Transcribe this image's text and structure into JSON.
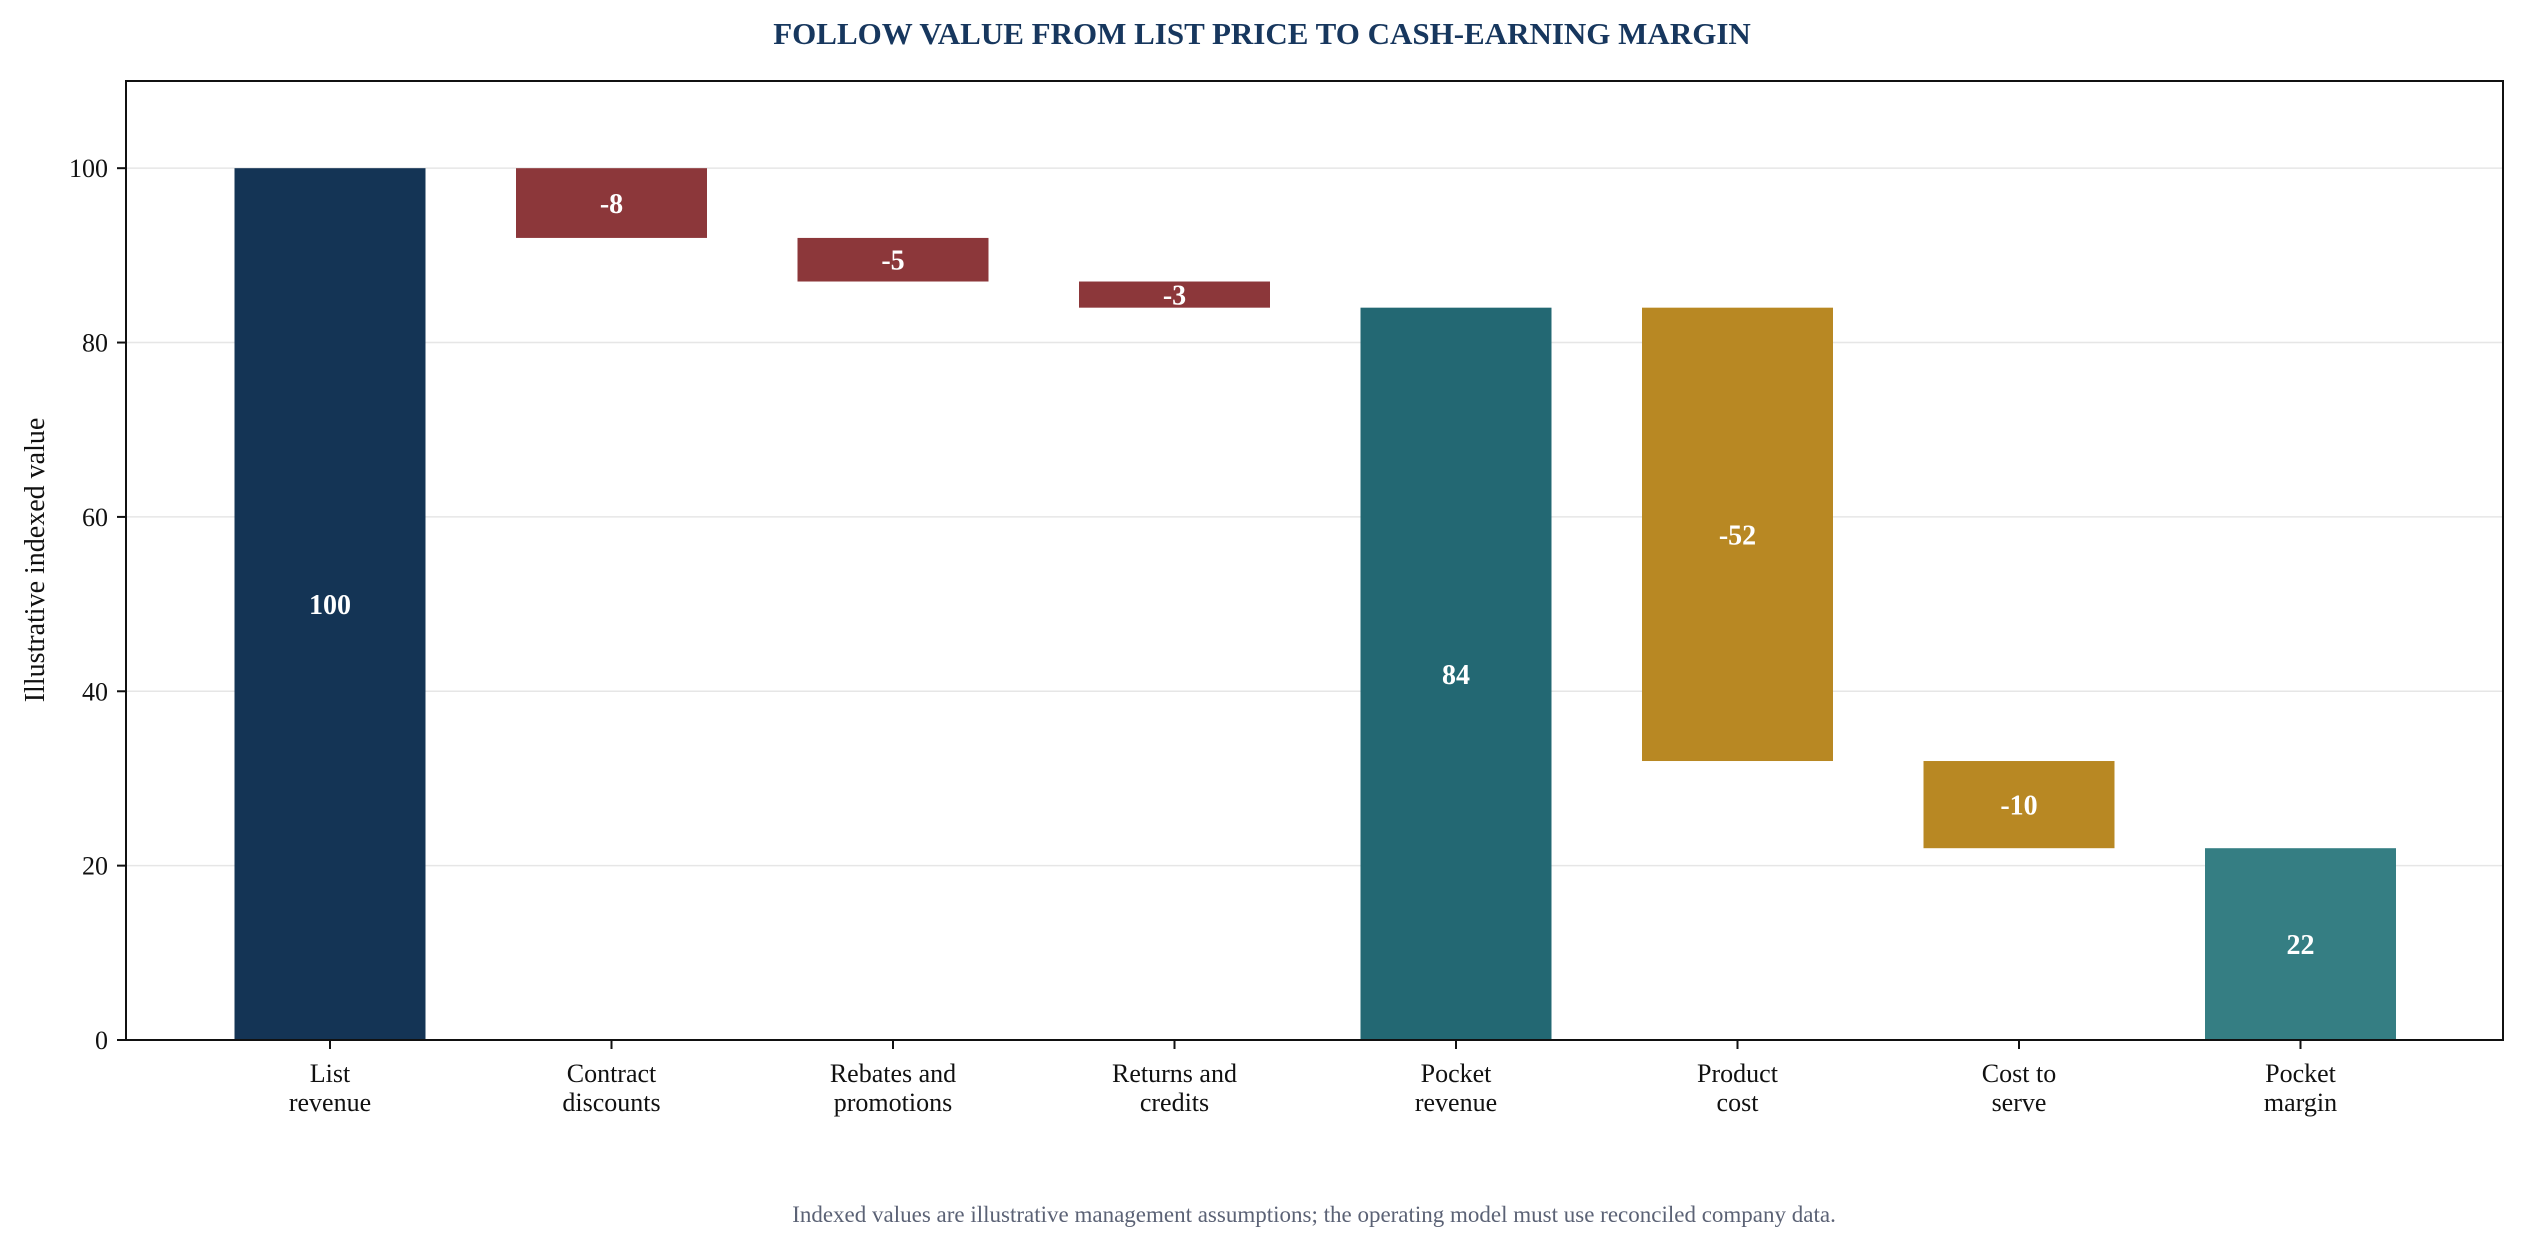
{
  "colors": {
    "title": "#17375e",
    "start": "#143455",
    "price_leak": "#8c373a",
    "subtotal": "#236873",
    "cost": "#b88823",
    "result": "#357e83",
    "grid": "#e6e6e6",
    "footnote": "#5b6275"
  },
  "chart_data": {
    "type": "bar",
    "subtype": "waterfall",
    "title": "FOLLOW VALUE FROM LIST PRICE TO CASH-EARNING MARGIN",
    "xlabel": "",
    "ylabel": "Illustrative indexed value",
    "ylim": [
      0,
      110
    ],
    "yticks": [
      0,
      20,
      40,
      60,
      80,
      100
    ],
    "grid": "y",
    "categories": [
      [
        "List",
        "revenue"
      ],
      [
        "Contract",
        "discounts"
      ],
      [
        "Rebates and",
        "promotions"
      ],
      [
        "Returns and",
        "credits"
      ],
      [
        "Pocket",
        "revenue"
      ],
      [
        "Product",
        "cost"
      ],
      [
        "Cost to",
        "serve"
      ],
      [
        "Pocket",
        "margin"
      ]
    ],
    "steps": [
      {
        "kind": "total",
        "value": 100,
        "label": "100",
        "color_key": "start"
      },
      {
        "kind": "delta",
        "value": -8,
        "label": "-8",
        "color_key": "price_leak"
      },
      {
        "kind": "delta",
        "value": -5,
        "label": "-5",
        "color_key": "price_leak"
      },
      {
        "kind": "delta",
        "value": -3,
        "label": "-3",
        "color_key": "price_leak"
      },
      {
        "kind": "total",
        "value": 84,
        "label": "84",
        "color_key": "subtotal"
      },
      {
        "kind": "delta",
        "value": -52,
        "label": "-52",
        "color_key": "cost"
      },
      {
        "kind": "delta",
        "value": -10,
        "label": "-10",
        "color_key": "cost"
      },
      {
        "kind": "total",
        "value": 22,
        "label": "22",
        "color_key": "result"
      }
    ]
  },
  "footnote": "Indexed values are illustrative management assumptions; the operating model must use reconciled company data."
}
